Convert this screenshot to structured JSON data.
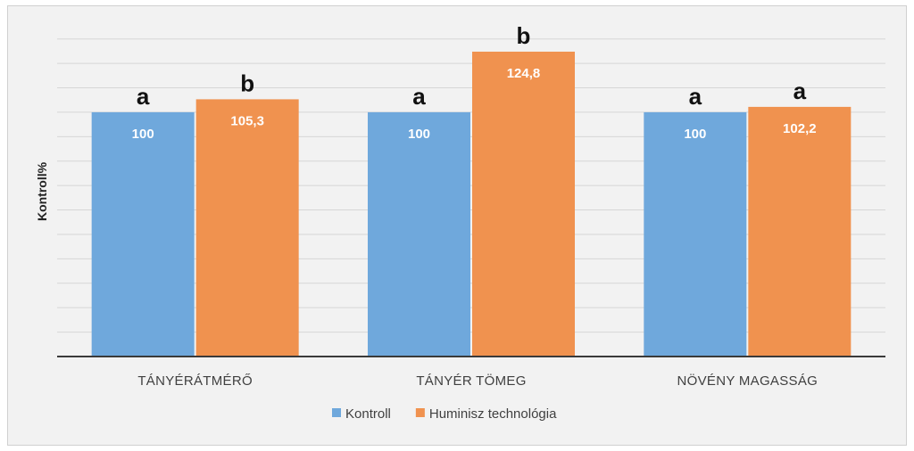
{
  "chart_data": {
    "type": "bar",
    "title": "",
    "xlabel": "",
    "ylabel": "Kontroll%",
    "ylim": [
      0,
      135
    ],
    "grid": true,
    "legend_position": "bottom",
    "categories": [
      "TÁNYÉRÁTMÉRŐ",
      "TÁNYÉR TÖMEG",
      "NÖVÉNY MAGASSÁG"
    ],
    "series": [
      {
        "name": "Kontroll",
        "color": "#6fa8dc",
        "values": [
          100,
          100,
          100
        ],
        "value_labels": [
          "100",
          "100",
          "100"
        ],
        "significance": [
          "a",
          "a",
          "a"
        ]
      },
      {
        "name": "Huminisz technológia",
        "color": "#f0924f",
        "values": [
          105.3,
          124.8,
          102.2
        ],
        "value_labels": [
          "105,3",
          "124,8",
          "102,2"
        ],
        "significance": [
          "b",
          "b",
          "a"
        ]
      }
    ]
  }
}
